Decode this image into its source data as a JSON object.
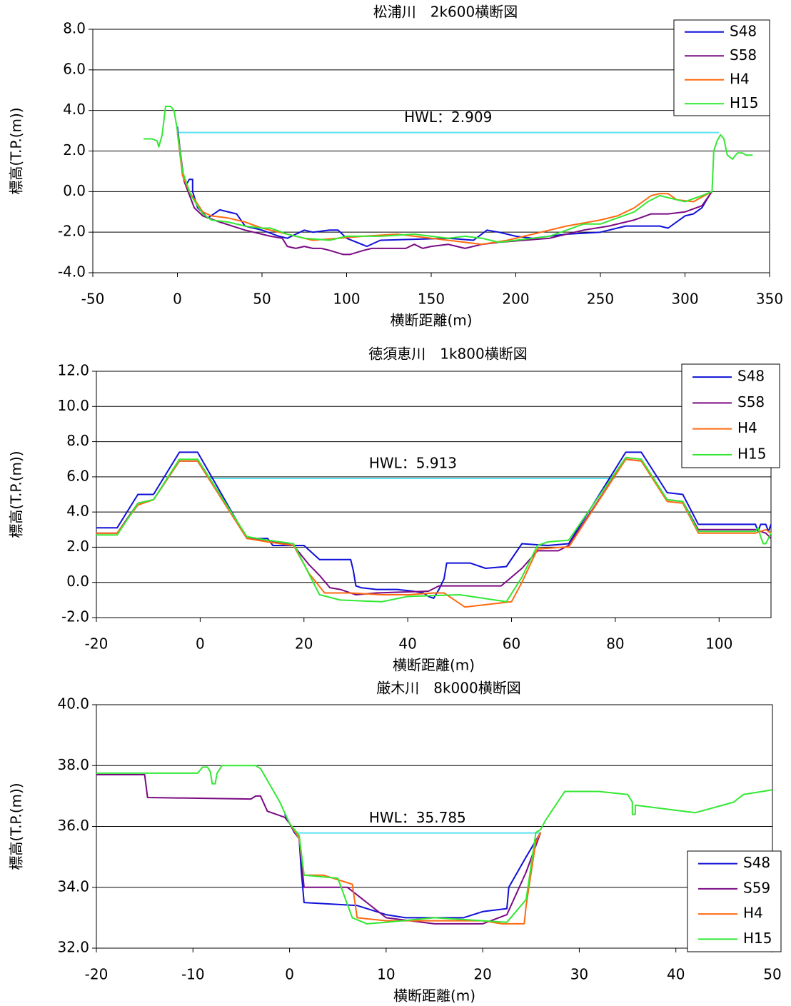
{
  "chart_data": [
    {
      "type": "line",
      "title": "松浦川　2k600横断図",
      "x_label": "横断距離(m)",
      "y_label": "標高(T.P.(m))",
      "xlim": [
        -50,
        350
      ],
      "xticks": [
        -50,
        0,
        50,
        100,
        150,
        200,
        250,
        300,
        350
      ],
      "ylim": [
        -4,
        8
      ],
      "yticks": [
        {
          "value": -4,
          "label": "-4.0"
        },
        {
          "value": -2,
          "label": "-2.0"
        },
        {
          "value": 0,
          "label": "0.0"
        },
        {
          "value": 2,
          "label": "2.0"
        },
        {
          "value": 4,
          "label": "4.0"
        },
        {
          "value": 6,
          "label": "6.0"
        },
        {
          "value": 8,
          "label": "8.0"
        }
      ],
      "grid": true,
      "legend": "top-right",
      "hwl": {
        "text": "HWL：2.909",
        "y": 2.909,
        "x": [
          0,
          320
        ],
        "color": "#5ce1f0"
      },
      "series": [
        {
          "name": "S48",
          "color": "#1010d8",
          "x": [
            0,
            3,
            5,
            7,
            9,
            9,
            12,
            18,
            25,
            35,
            40,
            50,
            60,
            65,
            70,
            75,
            80,
            90,
            95,
            100,
            112,
            120,
            160,
            175,
            183,
            190,
            200,
            210,
            230,
            250,
            265,
            285,
            290,
            300,
            305,
            310,
            315
          ],
          "values": [
            3.2,
            1.0,
            0.3,
            0.6,
            0.6,
            0,
            -0.8,
            -1.3,
            -0.9,
            -1.1,
            -1.7,
            -1.9,
            -2.2,
            -2.3,
            -2.1,
            -1.9,
            -2.0,
            -1.9,
            -1.9,
            -2.3,
            -2.7,
            -2.4,
            -2.3,
            -2.4,
            -1.9,
            -2.0,
            -2.2,
            -2.3,
            -2.1,
            -2.0,
            -1.7,
            -1.7,
            -1.8,
            -1.2,
            -1.1,
            -0.8,
            -0.1
          ]
        },
        {
          "name": "S58",
          "color": "#7a0a84",
          "x": [
            0,
            4,
            10,
            15,
            25,
            40,
            55,
            62,
            65,
            70,
            75,
            80,
            85,
            90,
            98,
            102,
            110,
            115,
            135,
            140,
            145,
            150,
            160,
            170,
            180,
            190,
            205,
            220,
            240,
            255,
            270,
            280,
            290,
            300,
            310,
            316
          ],
          "values": [
            3.0,
            0.5,
            -0.8,
            -1.2,
            -1.5,
            -1.9,
            -2.2,
            -2.3,
            -2.7,
            -2.8,
            -2.7,
            -2.8,
            -2.8,
            -2.9,
            -3.1,
            -3.1,
            -2.9,
            -2.8,
            -2.8,
            -2.6,
            -2.8,
            -2.7,
            -2.6,
            -2.8,
            -2.6,
            -2.5,
            -2.4,
            -2.3,
            -1.9,
            -1.7,
            -1.4,
            -1.1,
            -1.1,
            -1.0,
            -0.7,
            0
          ]
        },
        {
          "name": "H4",
          "color": "#ff6a10",
          "x": [
            0,
            3,
            7,
            15,
            20,
            30,
            40,
            50,
            60,
            70,
            80,
            95,
            110,
            130,
            150,
            170,
            180,
            195,
            210,
            230,
            250,
            260,
            265,
            270,
            280,
            285,
            290,
            295,
            305,
            316
          ],
          "values": [
            2.9,
            0.8,
            0,
            -1.0,
            -1.2,
            -1.3,
            -1.5,
            -1.8,
            -2.0,
            -2.2,
            -2.4,
            -2.3,
            -2.2,
            -2.1,
            -2.3,
            -2.5,
            -2.6,
            -2.4,
            -2.1,
            -1.7,
            -1.4,
            -1.2,
            -1.0,
            -0.8,
            -0.2,
            -0.1,
            -0.1,
            -0.4,
            -0.5,
            0
          ]
        },
        {
          "name": "H15",
          "color": "#33e833",
          "x": [
            -20,
            -15,
            -12,
            -11,
            -9,
            -7,
            -4,
            -2,
            0,
            3,
            8,
            15,
            20,
            30,
            40,
            50,
            55,
            65,
            75,
            90,
            100,
            120,
            140,
            150,
            160,
            170,
            180,
            190,
            200,
            220,
            240,
            250,
            260,
            270,
            278,
            285,
            295,
            300,
            310,
            316,
            317,
            319,
            321,
            323,
            325,
            328,
            331,
            334,
            336,
            340
          ],
          "values": [
            2.6,
            2.6,
            2.5,
            2.2,
            2.8,
            4.2,
            4.2,
            4.0,
            3.0,
            1.0,
            -0.2,
            -1.1,
            -1.4,
            -1.5,
            -1.7,
            -1.8,
            -1.8,
            -2.1,
            -2.3,
            -2.4,
            -2.2,
            -2.2,
            -2.1,
            -2.2,
            -2.3,
            -2.2,
            -2.3,
            -2.5,
            -2.4,
            -2.2,
            -1.6,
            -1.6,
            -1.3,
            -1.0,
            -0.5,
            -0.2,
            -0.4,
            -0.5,
            -0.2,
            0,
            2.0,
            2.5,
            2.8,
            2.6,
            1.8,
            1.6,
            1.9,
            1.9,
            1.8,
            1.8
          ]
        }
      ]
    },
    {
      "type": "line",
      "title": "徳須恵川　1k800横断図",
      "x_label": "横断距離(m)",
      "y_label": "標高(T.P.(m))",
      "xlim": [
        -20,
        110
      ],
      "xticks": [
        -20,
        0,
        20,
        40,
        60,
        80,
        100
      ],
      "ylim": [
        -2,
        12
      ],
      "yticks": [
        {
          "value": -2,
          "label": "-2.0"
        },
        {
          "value": 0,
          "label": "0.0"
        },
        {
          "value": 2,
          "label": "2.0"
        },
        {
          "value": 4,
          "label": "4.0"
        },
        {
          "value": 6,
          "label": "6.0"
        },
        {
          "value": 8,
          "label": "8.0"
        },
        {
          "value": 10,
          "label": "10.0"
        },
        {
          "value": 12,
          "label": "12.0"
        }
      ],
      "grid": true,
      "legend": "top-right",
      "hwl": {
        "text": "HWL：5.913",
        "y": 5.913,
        "x": [
          2,
          80
        ],
        "color": "#5ce1f0"
      },
      "series": [
        {
          "name": "S48",
          "color": "#1010d8",
          "x": [
            -20,
            -16,
            -12,
            -9,
            -4,
            -0.5,
            9,
            13,
            14,
            18,
            20,
            23,
            29,
            29.5,
            30,
            31,
            34,
            38,
            41,
            43,
            44,
            45,
            46,
            47,
            47.5,
            52,
            55,
            59,
            62,
            67,
            71,
            82,
            85,
            90,
            93,
            96,
            107,
            107.5,
            108,
            109,
            109.5,
            110
          ],
          "values": [
            3.1,
            3.1,
            5.0,
            5.0,
            7.4,
            7.4,
            2.5,
            2.5,
            2.1,
            2.1,
            2.1,
            1.3,
            1.3,
            0.7,
            -0.2,
            -0.3,
            -0.4,
            -0.4,
            -0.5,
            -0.6,
            -0.8,
            -0.9,
            -0.4,
            0.2,
            1.1,
            1.1,
            0.8,
            0.9,
            2.2,
            2.1,
            2.2,
            7.4,
            7.4,
            5.1,
            5.0,
            3.3,
            3.3,
            2.9,
            3.3,
            3.3,
            2.9,
            3.3
          ]
        },
        {
          "name": "S58",
          "color": "#7a0a84",
          "x": [
            -20,
            -16,
            -12,
            -9,
            -4,
            -0.5,
            9,
            13,
            18,
            21,
            23,
            25,
            27,
            30,
            34,
            44,
            46,
            58,
            62,
            65,
            69,
            71,
            82,
            85,
            90,
            93,
            96,
            107,
            109,
            110
          ],
          "values": [
            2.8,
            2.8,
            4.5,
            4.7,
            6.9,
            6.9,
            2.5,
            2.4,
            2.1,
            1.0,
            0.4,
            -0.3,
            -0.4,
            -0.7,
            -0.6,
            -0.5,
            -0.2,
            -0.2,
            0.8,
            1.8,
            1.8,
            2.1,
            7.0,
            6.9,
            4.7,
            4.6,
            3.0,
            3.0,
            2.8,
            2.5
          ]
        },
        {
          "name": "H4",
          "color": "#ff6a10",
          "x": [
            -20,
            -16,
            -12,
            -9,
            -4,
            -0.5,
            9,
            13,
            18,
            21,
            24,
            29,
            35,
            40,
            45,
            47,
            51,
            60,
            62,
            65,
            70,
            71,
            82,
            85,
            90,
            93,
            96,
            107,
            109,
            110
          ],
          "values": [
            2.8,
            2.8,
            4.4,
            4.7,
            6.9,
            6.9,
            2.5,
            2.3,
            2.1,
            0.5,
            -0.6,
            -0.6,
            -0.7,
            -0.7,
            -0.6,
            -0.6,
            -1.4,
            -1.1,
            0,
            1.9,
            2.0,
            2.0,
            7.0,
            6.9,
            4.6,
            4.5,
            2.8,
            2.8,
            3.0,
            2.8
          ]
        },
        {
          "name": "H15",
          "color": "#33e833",
          "x": [
            -20,
            -16,
            -12,
            -9,
            -4,
            -0.5,
            9,
            13,
            18,
            23,
            27,
            35,
            40,
            50,
            59,
            62,
            65,
            67,
            71,
            82,
            85,
            90,
            93,
            96,
            107,
            107.5,
            108,
            108.5,
            109,
            110
          ],
          "values": [
            2.7,
            2.7,
            4.5,
            4.7,
            7.0,
            7.0,
            2.6,
            2.4,
            2.2,
            -0.7,
            -1.0,
            -1.1,
            -0.8,
            -0.7,
            -1.1,
            0.3,
            2.1,
            2.3,
            2.4,
            7.1,
            7.0,
            4.7,
            4.6,
            2.9,
            2.9,
            3.1,
            2.6,
            2.2,
            2.2,
            2.8
          ]
        }
      ]
    },
    {
      "type": "line",
      "title": "厳木川　8k000横断図",
      "x_label": "横断距離(m)",
      "y_label": "標高(T.P.(m))",
      "xlim": [
        -20,
        50
      ],
      "xticks": [
        -20,
        -10,
        0,
        10,
        20,
        30,
        40,
        50
      ],
      "ylim": [
        32,
        40
      ],
      "yticks": [
        {
          "value": 32,
          "label": "32.0"
        },
        {
          "value": 34,
          "label": "34.0"
        },
        {
          "value": 36,
          "label": "36.0"
        },
        {
          "value": 38,
          "label": "38.0"
        },
        {
          "value": 40,
          "label": "40.0"
        }
      ],
      "grid": true,
      "legend": "bottom-right",
      "hwl": {
        "text": "HWL：35.785",
        "y": 35.785,
        "x": [
          0.5,
          26
        ],
        "color": "#5ce1f0"
      },
      "series": [
        {
          "name": "S48",
          "color": "#1010d8",
          "x": [
            -0.5,
            0,
            0.5,
            1,
            1.2,
            1.5,
            7,
            10,
            12,
            15,
            18,
            20,
            22.5,
            22.7,
            24.5,
            26
          ],
          "values": [
            36.4,
            36.1,
            35.8,
            35.6,
            34.6,
            33.5,
            33.4,
            33.1,
            33.0,
            33.0,
            33.0,
            33.2,
            33.3,
            34.0,
            35.0,
            35.8
          ]
        },
        {
          "name": "S59",
          "color": "#7a0a84",
          "x": [
            -20,
            -15,
            -14.7,
            -4,
            -3.5,
            -3,
            -2.3,
            -0.5,
            0,
            1,
            1.5,
            6,
            8,
            10,
            15,
            20,
            22.5,
            24.5,
            26
          ],
          "values": [
            37.7,
            37.7,
            36.95,
            36.9,
            37.0,
            37.0,
            36.5,
            36.3,
            36.1,
            35.6,
            34.0,
            34.0,
            33.5,
            33.0,
            32.8,
            32.8,
            33.1,
            34.5,
            35.8
          ]
        },
        {
          "name": "H4",
          "color": "#ff6a10",
          "x": [
            0,
            1,
            1.5,
            3.5,
            6.5,
            7,
            10,
            20,
            22,
            24.3,
            24.5,
            25.5,
            26
          ],
          "values": [
            36.1,
            35.6,
            34.4,
            34.4,
            34.1,
            33.0,
            32.9,
            32.9,
            32.8,
            32.8,
            33.4,
            35.5,
            35.8
          ]
        },
        {
          "name": "H15",
          "color": "#33e833",
          "x": [
            -20,
            -9.5,
            -9,
            -8.5,
            -8.2,
            -8,
            -7.7,
            -7.5,
            -7,
            -3.5,
            -3,
            -1,
            0,
            1,
            1.5,
            5,
            6.5,
            8,
            10,
            15,
            20,
            22.5,
            24.5,
            25.5,
            26,
            26.5,
            28.5,
            32,
            35,
            35.5,
            35.5,
            35.8,
            35.8,
            42,
            46,
            47,
            50
          ],
          "values": [
            37.75,
            37.75,
            37.95,
            37.95,
            37.8,
            37.4,
            37.4,
            37.75,
            38.0,
            38.0,
            37.9,
            36.8,
            36.1,
            35.7,
            34.4,
            34.3,
            33.0,
            32.8,
            32.85,
            33.0,
            32.9,
            32.85,
            33.6,
            35.8,
            35.9,
            36.2,
            37.15,
            37.15,
            37.05,
            36.8,
            36.4,
            36.4,
            36.7,
            36.45,
            36.8,
            37.05,
            37.2
          ]
        }
      ]
    }
  ]
}
